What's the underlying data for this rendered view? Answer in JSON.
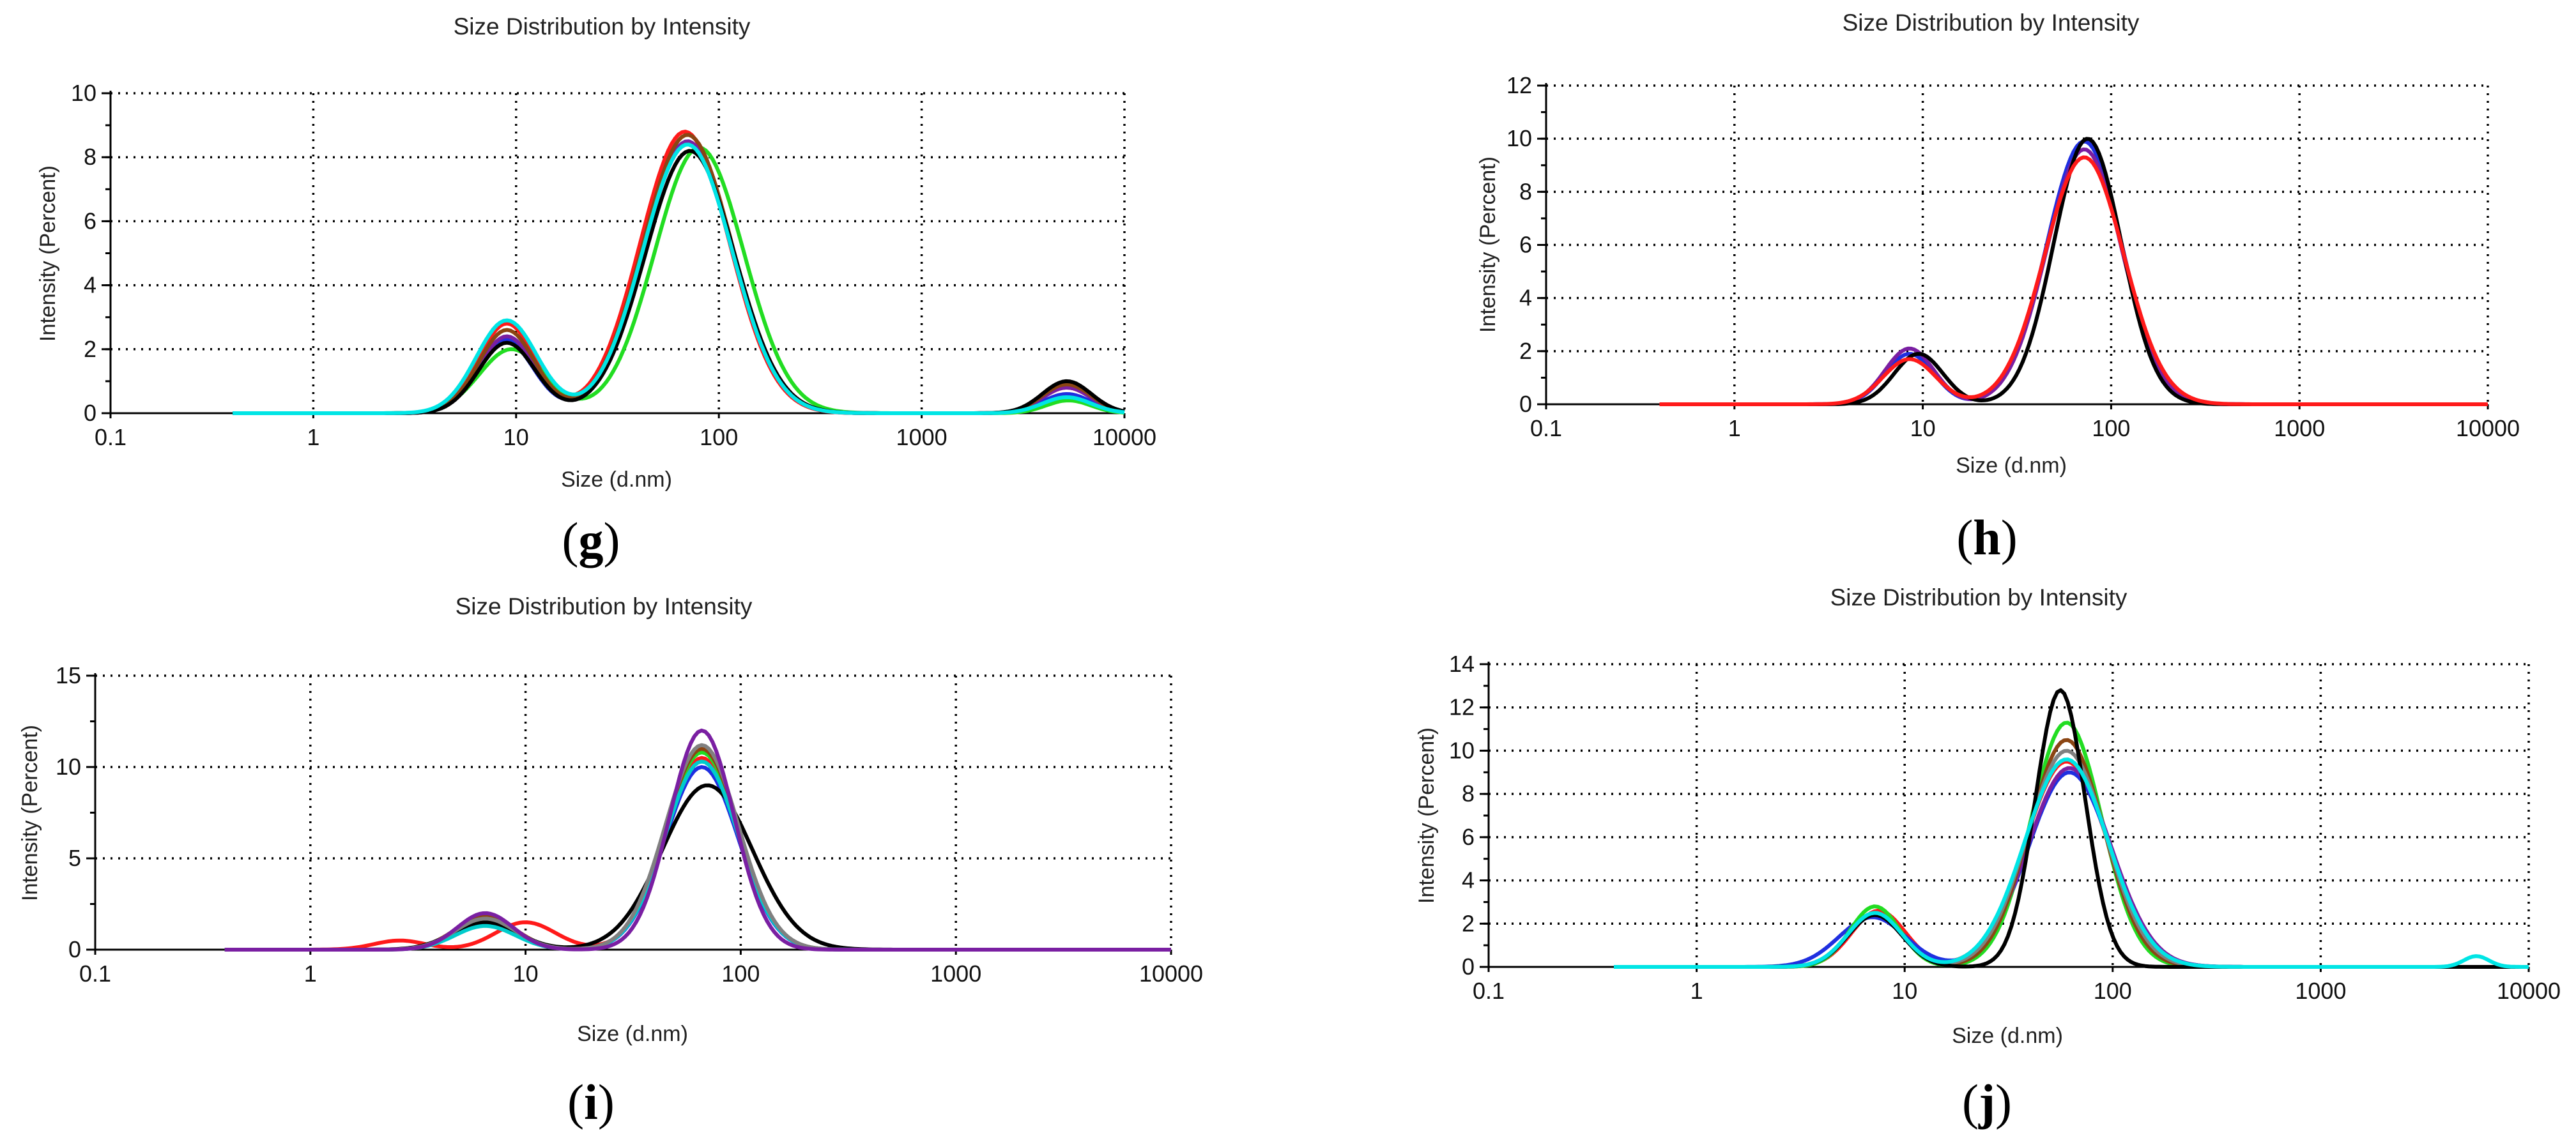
{
  "chart_data": [
    {
      "panel": "g",
      "type": "line",
      "title": "Size Distribution by Intensity",
      "xlabel": "Size (d.nm)",
      "ylabel": "Intensity (Percent)",
      "xscale": "log",
      "xlim": [
        0.1,
        10000
      ],
      "ylim": [
        0,
        10
      ],
      "xticks": [
        0.1,
        1,
        10,
        100,
        1000,
        10000
      ],
      "xtick_labels": [
        "0.1",
        "1",
        "10",
        "100",
        "1000",
        "10000"
      ],
      "yticks": [
        0,
        2,
        4,
        6,
        8,
        10
      ],
      "ytick_labels": [
        "0",
        "2",
        "4",
        "6",
        "8",
        "10"
      ],
      "x_range": [
        0.4,
        10000
      ],
      "grid": true,
      "series": [
        {
          "name": "red",
          "color": "#ff1a1a",
          "peaks": [
            [
              9.0,
              2.8,
              0.14
            ],
            [
              68,
              8.8,
              0.22
            ],
            [
              5200,
              0.8,
              0.12
            ]
          ]
        },
        {
          "name": "blue",
          "color": "#1f2fe0",
          "peaks": [
            [
              8.8,
              2.3,
              0.14
            ],
            [
              70,
              8.4,
              0.22
            ],
            [
              5200,
              0.6,
              0.12
            ]
          ]
        },
        {
          "name": "green",
          "color": "#22dd22",
          "peaks": [
            [
              9.5,
              2.0,
              0.16
            ],
            [
              80,
              8.3,
              0.22
            ],
            [
              5300,
              0.4,
              0.11
            ]
          ]
        },
        {
          "name": "purple",
          "color": "#7a1fa2",
          "peaks": [
            [
              9.0,
              2.4,
              0.14
            ],
            [
              70,
              8.5,
              0.22
            ],
            [
              5200,
              0.8,
              0.12
            ]
          ]
        },
        {
          "name": "brown",
          "color": "#8b4513",
          "peaks": [
            [
              9.0,
              2.6,
              0.14
            ],
            [
              70,
              8.7,
              0.22
            ],
            [
              5200,
              0.9,
              0.12
            ]
          ]
        },
        {
          "name": "black",
          "color": "#000000",
          "peaks": [
            [
              9.0,
              2.2,
              0.14
            ],
            [
              72,
              8.2,
              0.22
            ],
            [
              5200,
              1.0,
              0.12
            ]
          ]
        },
        {
          "name": "cyan",
          "color": "#00e5e5",
          "peaks": [
            [
              9.0,
              2.9,
              0.15
            ],
            [
              70,
              8.4,
              0.22
            ],
            [
              5200,
              0.5,
              0.12
            ]
          ]
        }
      ]
    },
    {
      "panel": "h",
      "type": "line",
      "title": "Size Distribution by Intensity",
      "xlabel": "Size (d.nm)",
      "ylabel": "Intensity (Percent)",
      "xscale": "log",
      "xlim": [
        0.1,
        10000
      ],
      "ylim": [
        0,
        12
      ],
      "xticks": [
        0.1,
        1,
        10,
        100,
        1000,
        10000
      ],
      "xtick_labels": [
        "0.1",
        "1",
        "10",
        "100",
        "1000",
        "10000"
      ],
      "yticks": [
        0,
        2,
        4,
        6,
        8,
        10,
        12
      ],
      "ytick_labels": [
        "0",
        "2",
        "4",
        "6",
        "8",
        "10",
        "12"
      ],
      "x_range": [
        0.4,
        10000
      ],
      "grid": true,
      "series": [
        {
          "name": "blue",
          "color": "#1f2fe0",
          "peaks": [
            [
              8.5,
              1.9,
              0.13
            ],
            [
              72,
              9.9,
              0.2
            ]
          ]
        },
        {
          "name": "purple",
          "color": "#7a1fa2",
          "peaks": [
            [
              8.5,
              2.1,
              0.13
            ],
            [
              72,
              9.6,
              0.2
            ]
          ]
        },
        {
          "name": "black",
          "color": "#000000",
          "peaks": [
            [
              9.5,
              1.9,
              0.13
            ],
            [
              75,
              10.0,
              0.18
            ]
          ]
        },
        {
          "name": "red",
          "color": "#ff1a1a",
          "peaks": [
            [
              8.5,
              1.7,
              0.14
            ],
            [
              72,
              9.3,
              0.21
            ]
          ]
        }
      ]
    },
    {
      "panel": "i",
      "type": "line",
      "title": "Size Distribution by Intensity",
      "xlabel": "Size (d.nm)",
      "ylabel": "Intensity (Percent)",
      "xscale": "log",
      "xlim": [
        0.1,
        10000
      ],
      "ylim": [
        0,
        15
      ],
      "xticks": [
        0.1,
        1,
        10,
        100,
        1000,
        10000
      ],
      "xtick_labels": [
        "0.1",
        "1",
        "10",
        "100",
        "1000",
        "10000"
      ],
      "yticks": [
        0,
        5,
        10,
        15
      ],
      "ytick_labels": [
        "0",
        "5",
        "10",
        "15"
      ],
      "x_range": [
        0.4,
        10000
      ],
      "grid": true,
      "series": [
        {
          "name": "red",
          "color": "#ff1a1a",
          "peaks": [
            [
              2.6,
              0.5,
              0.12
            ],
            [
              10,
              1.5,
              0.14
            ],
            [
              66,
              10.5,
              0.17
            ]
          ]
        },
        {
          "name": "blue",
          "color": "#1f2fe0",
          "peaks": [
            [
              6.5,
              1.6,
              0.14
            ],
            [
              66,
              10.0,
              0.17
            ]
          ]
        },
        {
          "name": "green",
          "color": "#22dd22",
          "peaks": [
            [
              6.5,
              1.4,
              0.14
            ],
            [
              66,
              10.8,
              0.17
            ]
          ]
        },
        {
          "name": "brown",
          "color": "#8b4513",
          "peaks": [
            [
              6.5,
              1.8,
              0.14
            ],
            [
              66,
              11.0,
              0.17
            ]
          ]
        },
        {
          "name": "black",
          "color": "#000000",
          "peaks": [
            [
              6.5,
              1.5,
              0.15
            ],
            [
              70,
              9.0,
              0.21
            ]
          ]
        },
        {
          "name": "cyan",
          "color": "#00cccc",
          "peaks": [
            [
              6.5,
              1.3,
              0.14
            ],
            [
              66,
              10.3,
              0.17
            ]
          ]
        },
        {
          "name": "gray",
          "color": "#808080",
          "peaks": [
            [
              6.5,
              1.7,
              0.14
            ],
            [
              66,
              11.2,
              0.17
            ]
          ]
        },
        {
          "name": "purple",
          "color": "#7a1fa2",
          "peaks": [
            [
              6.5,
              2.0,
              0.13
            ],
            [
              66,
              12.0,
              0.15
            ]
          ]
        }
      ]
    },
    {
      "panel": "j",
      "type": "line",
      "title": "Size Distribution by Intensity",
      "xlabel": "Size (d.nm)",
      "ylabel": "Intensity (Percent)",
      "xscale": "log",
      "xlim": [
        0.1,
        10000
      ],
      "ylim": [
        0,
        14
      ],
      "xticks": [
        0.1,
        1,
        10,
        100,
        1000,
        10000
      ],
      "xtick_labels": [
        "0.1",
        "1",
        "10",
        "100",
        "1000",
        "10000"
      ],
      "yticks": [
        0,
        2,
        4,
        6,
        8,
        10,
        12,
        14
      ],
      "ytick_labels": [
        "0",
        "2",
        "4",
        "6",
        "8",
        "10",
        "12",
        "14"
      ],
      "x_range": [
        0.4,
        10000
      ],
      "grid": true,
      "series": [
        {
          "name": "red",
          "color": "#ff1a1a",
          "peaks": [
            [
              7.5,
              2.6,
              0.13
            ],
            [
              60,
              9.5,
              0.2
            ]
          ]
        },
        {
          "name": "blue",
          "color": "#1f2fe0",
          "peaks": [
            [
              7.0,
              2.3,
              0.16
            ],
            [
              62,
              9.0,
              0.2
            ]
          ]
        },
        {
          "name": "green",
          "color": "#22dd22",
          "peaks": [
            [
              7.2,
              2.8,
              0.12
            ],
            [
              60,
              11.3,
              0.17
            ]
          ]
        },
        {
          "name": "purple",
          "color": "#7a1fa2",
          "peaks": [
            [
              7.2,
              2.4,
              0.13
            ],
            [
              62,
              9.2,
              0.2
            ]
          ]
        },
        {
          "name": "brown",
          "color": "#8b4513",
          "peaks": [
            [
              7.2,
              2.5,
              0.13
            ],
            [
              60,
              10.5,
              0.18
            ]
          ]
        },
        {
          "name": "gray",
          "color": "#808080",
          "peaks": [
            [
              7.2,
              2.5,
              0.13
            ],
            [
              60,
              10.0,
              0.19
            ]
          ]
        },
        {
          "name": "black",
          "color": "#000000",
          "peaks": [
            [
              7.2,
              2.4,
              0.13
            ],
            [
              56,
              12.8,
              0.12
            ]
          ]
        },
        {
          "name": "cyan",
          "color": "#00e5e5",
          "peaks": [
            [
              7.2,
              2.5,
              0.13
            ],
            [
              60,
              9.6,
              0.2
            ],
            [
              5600,
              0.5,
              0.06
            ]
          ]
        }
      ]
    }
  ],
  "panel_labels": {
    "g": {
      "open": "(",
      "letter": "g",
      "close": ")"
    },
    "h": {
      "open": "(",
      "letter": "h",
      "close": ")"
    },
    "i": {
      "open": "(",
      "letter": "i",
      "close": ")"
    },
    "j": {
      "open": "(",
      "letter": "j",
      "close": ")"
    }
  }
}
